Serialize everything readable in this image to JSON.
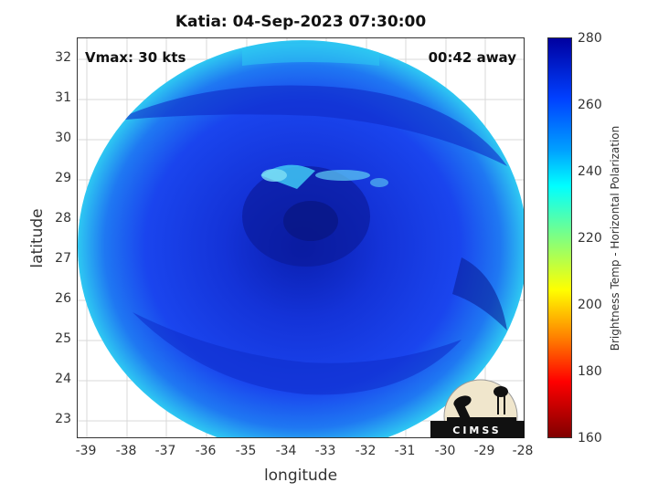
{
  "title": "Katia: 04-Sep-2023 07:30:00",
  "annotations": {
    "vmax": "Vmax: 30 kts",
    "time_away": "00:42 away"
  },
  "axes": {
    "xlabel": "longitude",
    "ylabel": "latitude",
    "xticks": [
      "-39",
      "-38",
      "-37",
      "-36",
      "-35",
      "-34",
      "-33",
      "-32",
      "-31",
      "-30",
      "-29",
      "-28"
    ],
    "yticks": [
      "32",
      "31",
      "30",
      "29",
      "28",
      "27",
      "26",
      "25",
      "24",
      "23"
    ]
  },
  "colorbar": {
    "label": "Brightness Temp - Horizontal Polarization",
    "ticks": [
      "280",
      "260",
      "240",
      "220",
      "200",
      "180",
      "160"
    ]
  },
  "logo": {
    "text": "CIMSS"
  },
  "colors": {
    "warm_core": "#1a33e0",
    "cold_cloud": "#0a1fa8",
    "edge": "#28c0f0"
  }
}
